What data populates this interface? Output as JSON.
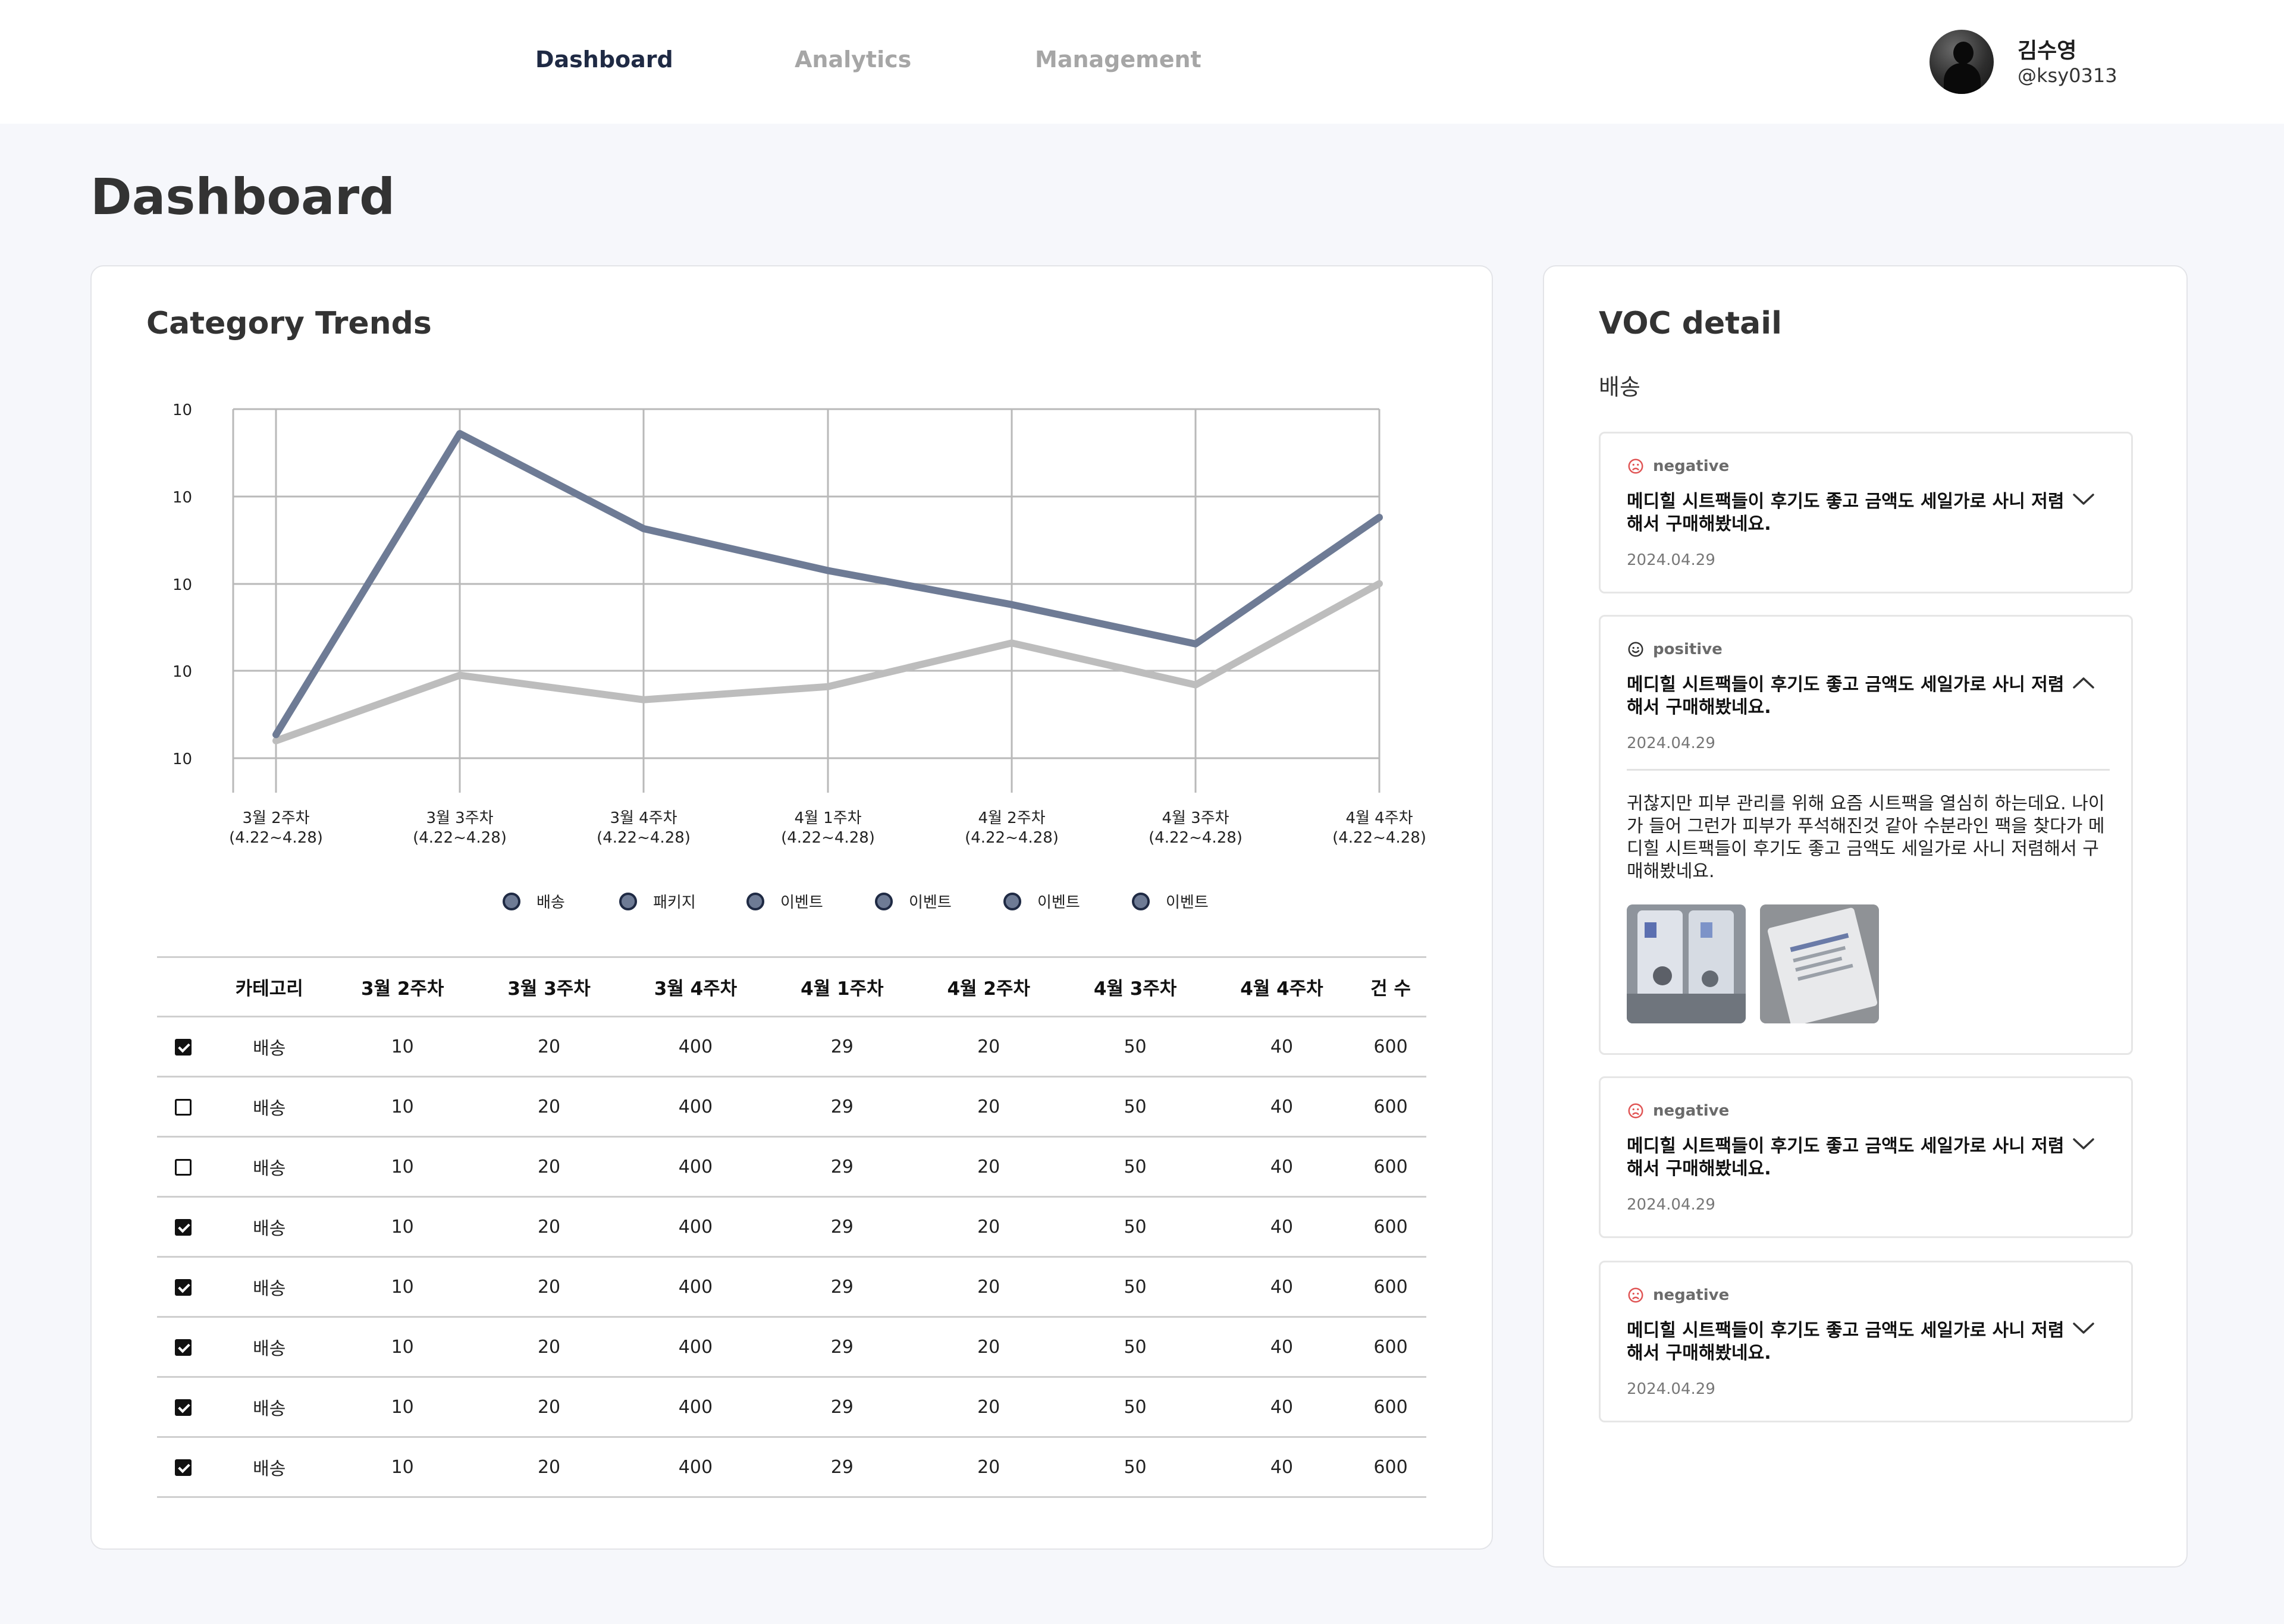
{
  "nav": {
    "tabs": [
      {
        "label": "Dashboard",
        "active": true
      },
      {
        "label": "Analytics",
        "active": false
      },
      {
        "label": "Management",
        "active": false
      }
    ]
  },
  "user": {
    "name": "김수영",
    "handle": "@ksy0313"
  },
  "page": {
    "title": "Dashboard"
  },
  "trends": {
    "title": "Category Trends"
  },
  "chart_data": {
    "type": "line",
    "title": "Category Trends",
    "x_labels": [
      [
        "3월 2주차",
        "(4.22~4.28)"
      ],
      [
        "3월 3주차",
        "(4.22~4.28)"
      ],
      [
        "3월 4주차",
        "(4.22~4.28)"
      ],
      [
        "4월 1주차",
        "(4.22~4.28)"
      ],
      [
        "4월 2주차",
        "(4.22~4.28)"
      ],
      [
        "4월 3주차",
        "(4.22~4.28)"
      ],
      [
        "4월 4주차",
        "(4.22~4.28)"
      ]
    ],
    "y_tick_labels": [
      "10",
      "10",
      "10",
      "10",
      "10"
    ],
    "ylim": [
      0,
      4
    ],
    "grid": true,
    "series": [
      {
        "color": "#6e7b95",
        "values": [
          0.27,
          3.72,
          2.63,
          2.15,
          1.76,
          1.31,
          2.76
        ]
      },
      {
        "color": "#bdbdbd",
        "values": [
          0.2,
          0.95,
          0.67,
          0.82,
          1.32,
          0.84,
          2.0
        ]
      }
    ],
    "legend": {
      "placement": "bottom",
      "items": [
        "배송",
        "패키지",
        "이벤트",
        "이벤트",
        "이벤트",
        "이벤트"
      ],
      "marker_color": "#6e7b95"
    }
  },
  "table": {
    "headers": [
      "",
      "카테고리",
      "3월 2주차",
      "3월 3주차",
      "3월 4주차",
      "4월 1주차",
      "4월 2주차",
      "4월 3주차",
      "4월 4주차",
      "건 수"
    ],
    "rows": [
      {
        "checked": true,
        "cells": [
          "배송",
          "10",
          "20",
          "400",
          "29",
          "20",
          "50",
          "40",
          "600"
        ]
      },
      {
        "checked": false,
        "cells": [
          "배송",
          "10",
          "20",
          "400",
          "29",
          "20",
          "50",
          "40",
          "600"
        ]
      },
      {
        "checked": false,
        "cells": [
          "배송",
          "10",
          "20",
          "400",
          "29",
          "20",
          "50",
          "40",
          "600"
        ]
      },
      {
        "checked": true,
        "cells": [
          "배송",
          "10",
          "20",
          "400",
          "29",
          "20",
          "50",
          "40",
          "600"
        ]
      },
      {
        "checked": true,
        "cells": [
          "배송",
          "10",
          "20",
          "400",
          "29",
          "20",
          "50",
          "40",
          "600"
        ]
      },
      {
        "checked": true,
        "cells": [
          "배송",
          "10",
          "20",
          "400",
          "29",
          "20",
          "50",
          "40",
          "600"
        ]
      },
      {
        "checked": true,
        "cells": [
          "배송",
          "10",
          "20",
          "400",
          "29",
          "20",
          "50",
          "40",
          "600"
        ]
      },
      {
        "checked": true,
        "cells": [
          "배송",
          "10",
          "20",
          "400",
          "29",
          "20",
          "50",
          "40",
          "600"
        ]
      }
    ]
  },
  "voc": {
    "title": "VOC detail",
    "category": "배송",
    "colors": {
      "negative": "#e05555",
      "positive": "#333333"
    },
    "items": [
      {
        "sentiment": "negative",
        "title": "메디힐 시트팩들이 후기도 좋고 금액도 세일가로 사니 저렴해서 구매해봤네요.",
        "date": "2024.04.29",
        "expanded": false
      },
      {
        "sentiment": "positive",
        "title": "메디힐 시트팩들이 후기도 좋고 금액도 세일가로 사니 저렴해서 구매해봤네요.",
        "date": "2024.04.29",
        "expanded": true,
        "body": "귀찮지만 피부 관리를 위해 요즘 시트팩을 열심히 하는데요. 나이가 들어 그런가 피부가 푸석해진것 같아 수분라인 팩을 찾다가 메디힐 시트팩들이 후기도 좋고 금액도 세일가로 사니 저렴해서 구매해봤네요."
      },
      {
        "sentiment": "negative",
        "title": "메디힐 시트팩들이 후기도 좋고 금액도 세일가로 사니 저렴해서 구매해봤네요.",
        "date": "2024.04.29",
        "expanded": false
      },
      {
        "sentiment": "negative",
        "title": "메디힐 시트팩들이 후기도 좋고 금액도 세일가로 사니 저렴해서 구매해봤네요.",
        "date": "2024.04.29",
        "expanded": false
      }
    ]
  }
}
